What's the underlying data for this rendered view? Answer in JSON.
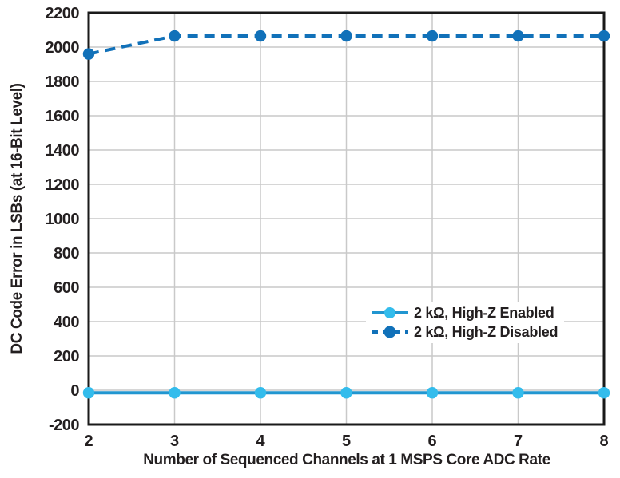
{
  "chart_data": {
    "type": "line",
    "title": "",
    "xlabel": "Number of Sequenced Channels at 1 MSPS Core ADC Rate",
    "ylabel": "DC Code Error in LSBs (at 16-Bit Level)",
    "x": [
      2,
      3,
      4,
      5,
      6,
      7,
      8
    ],
    "xlim": [
      2,
      8
    ],
    "ylim": [
      -200,
      2200
    ],
    "ytick_step": 200,
    "yticks": [
      -200,
      0,
      200,
      400,
      600,
      800,
      1000,
      1200,
      1400,
      1600,
      1800,
      2000,
      2200
    ],
    "grid": true,
    "legend_position": "inside-right-lower-middle",
    "series": [
      {
        "name": "2 kΩ, High-Z Enabled",
        "line_style": "solid",
        "marker": "circle",
        "line_color": "#2196D0",
        "marker_color": "#33BCEC",
        "values": [
          -15,
          -15,
          -15,
          -15,
          -15,
          -15,
          -15
        ]
      },
      {
        "name": "2 kΩ, High-Z Disabled",
        "line_style": "dashed",
        "marker": "circle",
        "line_color": "#1171B9",
        "marker_color": "#1171B9",
        "values": [
          1960,
          2065,
          2065,
          2065,
          2065,
          2065,
          2065
        ]
      }
    ]
  },
  "colors": {
    "grid": "#C9C9C9",
    "axis_border": "#1A1A1A",
    "text": "#231F20",
    "background": "#FFFFFF"
  }
}
